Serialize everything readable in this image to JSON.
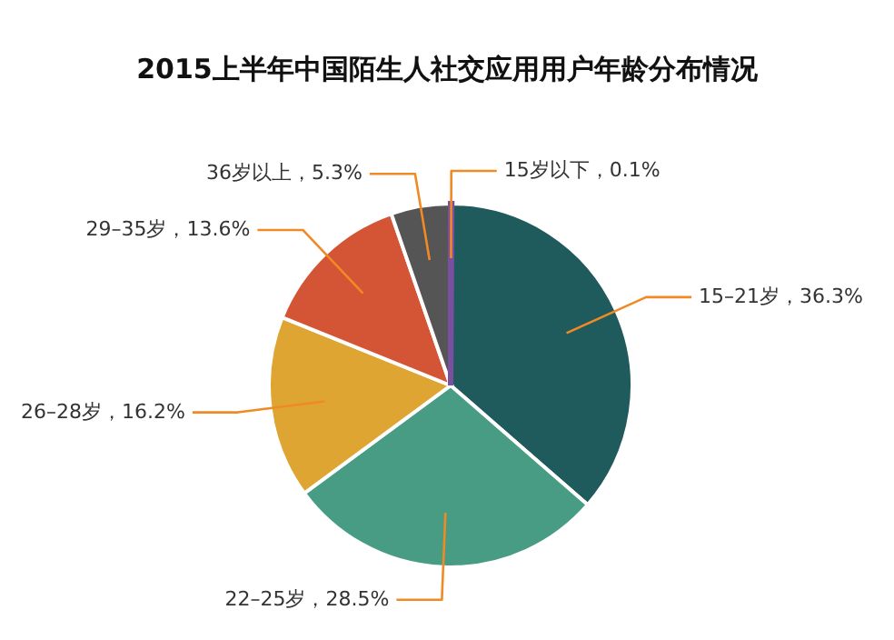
{
  "chart_data": {
    "type": "pie",
    "title": "2015上半年中国陌生人社交应用用户年龄分布情况",
    "categories": [
      "15岁以下",
      "15–21岁",
      "22–25岁",
      "26–28岁",
      "29–35岁",
      "36岁以上"
    ],
    "values": [
      0.1,
      36.3,
      28.5,
      16.2,
      13.6,
      5.3
    ],
    "value_labels": [
      "，0.1%",
      "，36.3%",
      "，28.5%",
      "，16.2%",
      "，13.6%",
      "，5.3%"
    ],
    "colors": [
      "#7b4fa0",
      "#1f5b5c",
      "#479c83",
      "#dea532",
      "#d45536",
      "#555555"
    ]
  }
}
